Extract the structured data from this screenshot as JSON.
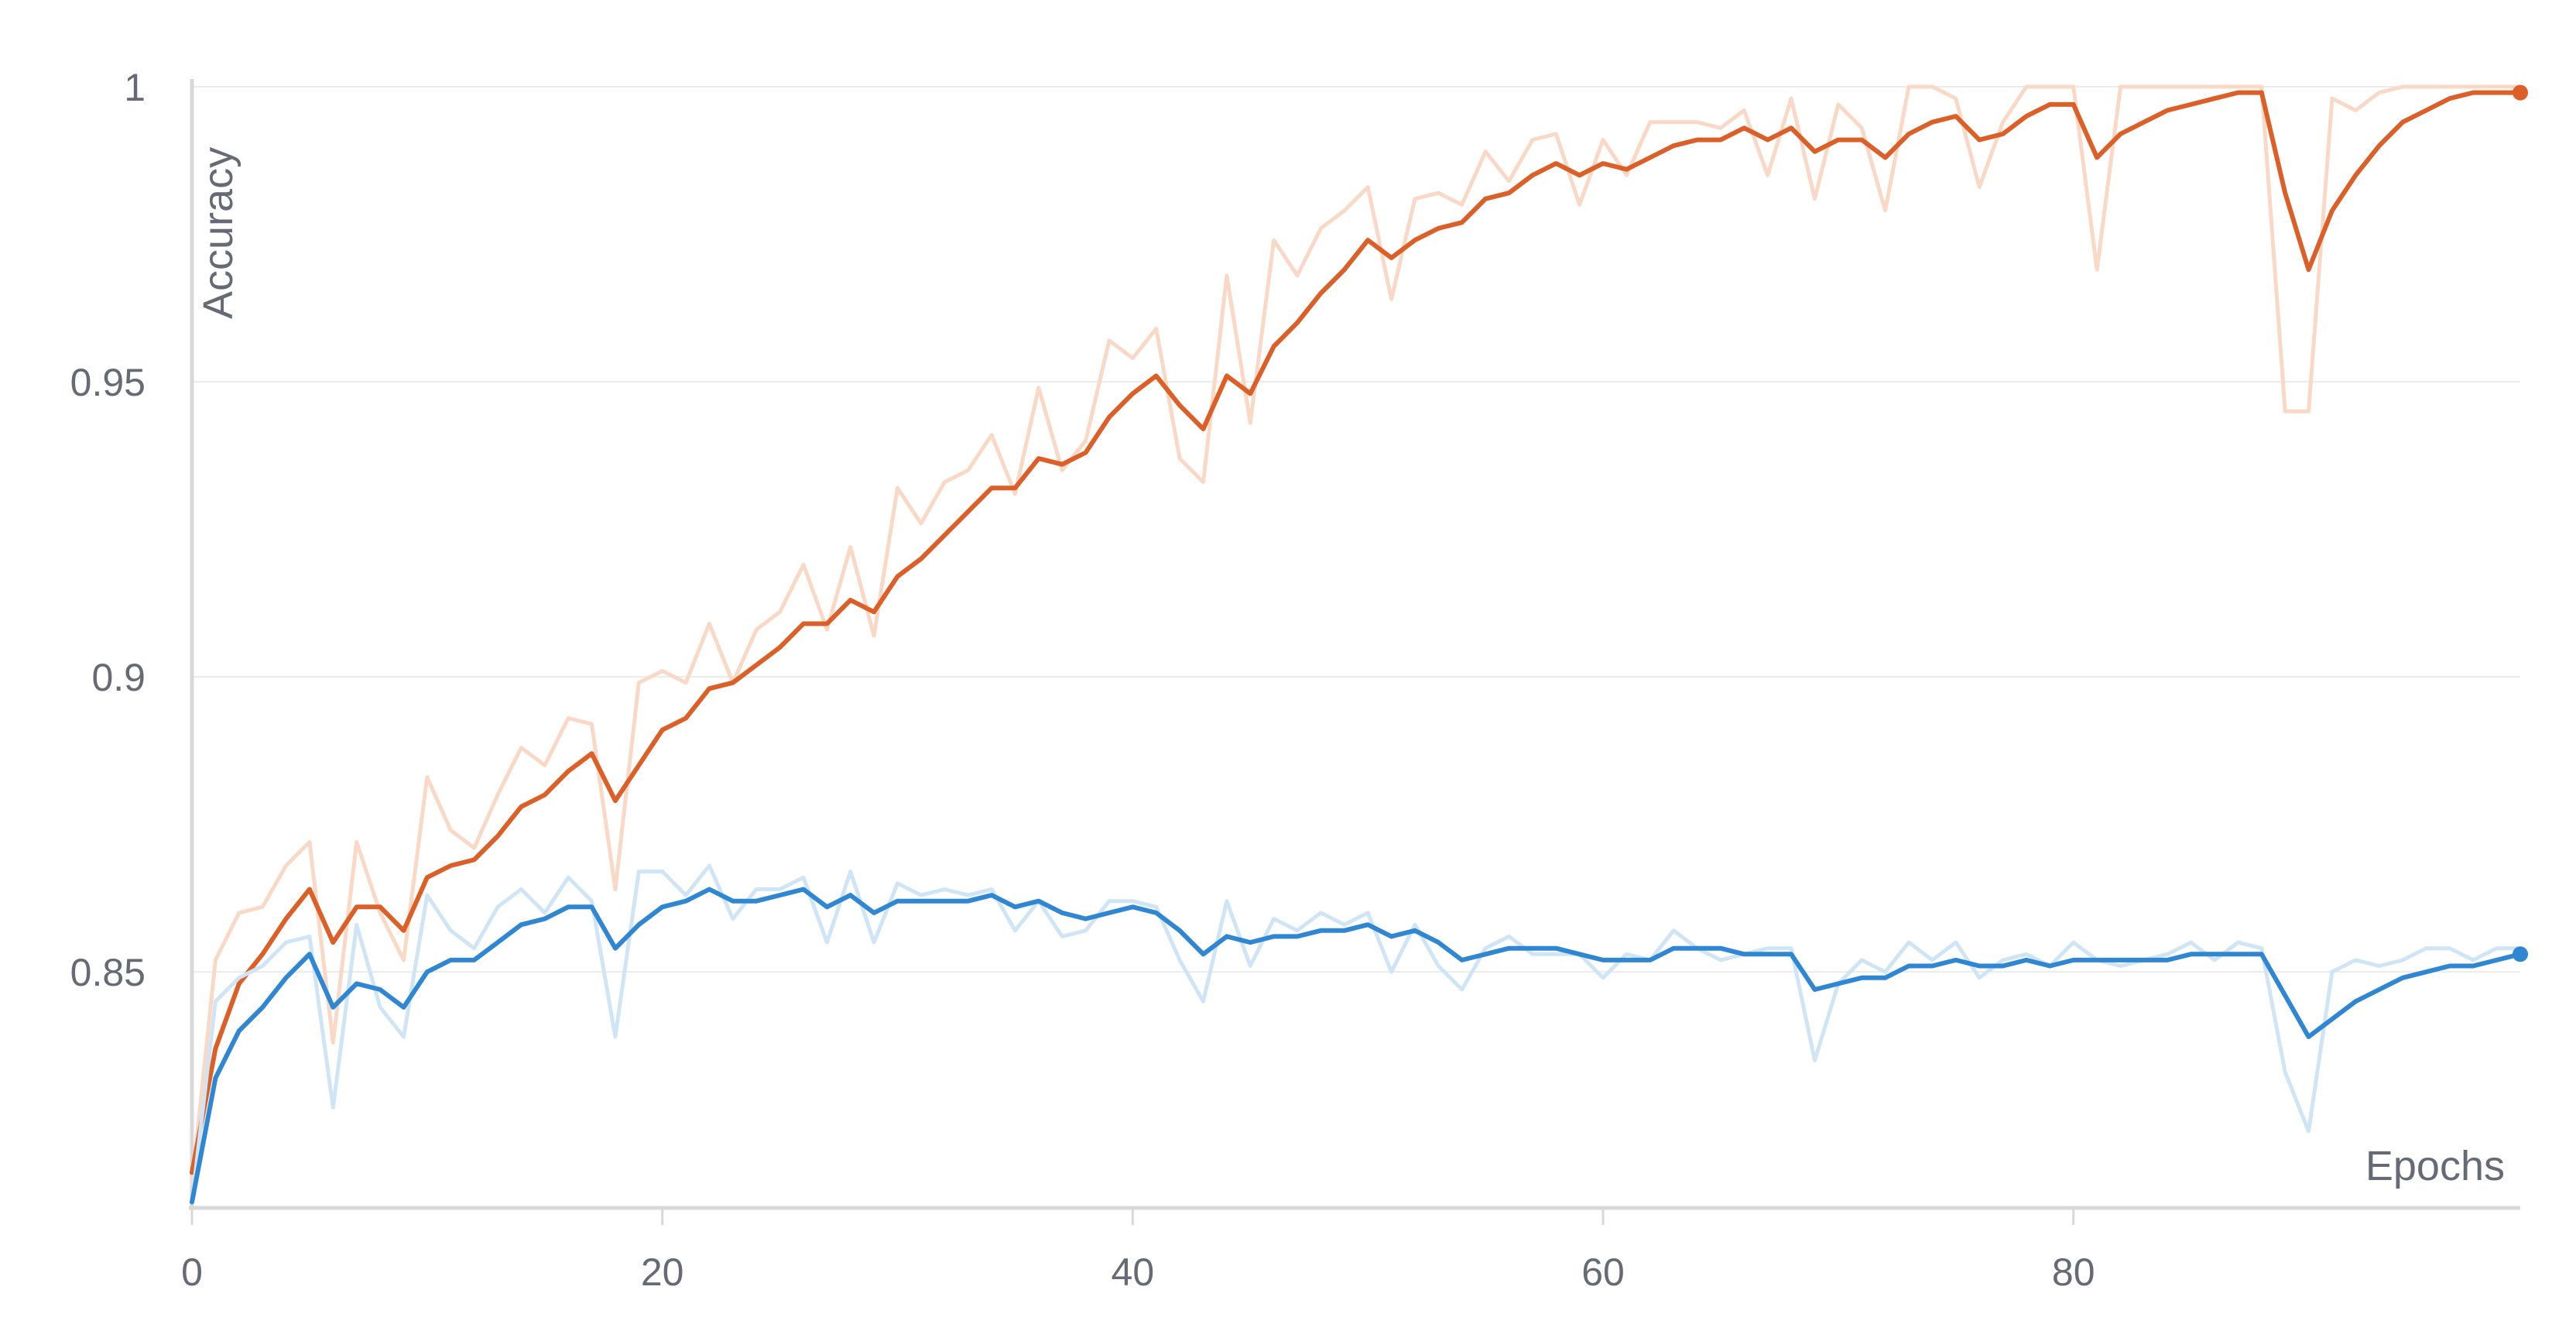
{
  "chart_data": {
    "type": "line",
    "xlabel": "Epochs",
    "ylabel": "Accuracy",
    "xlim": [
      0,
      99
    ],
    "ylim": [
      0.81,
      1.0
    ],
    "x_ticks": [
      0,
      20,
      40,
      60,
      80
    ],
    "x_tick_labels": [
      "0",
      "20",
      "40",
      "60",
      "80"
    ],
    "y_ticks": [
      0.85,
      0.9,
      0.95,
      1.0
    ],
    "y_tick_labels": [
      "0.85",
      "0.9",
      "0.95",
      "1"
    ],
    "grid": true,
    "smoothing": "exponential moving average shown as solid line over faint raw values",
    "colors": {
      "train_smoothed": "#dd5f28",
      "train_raw": "#f9d8c6",
      "val_smoothed": "#2f86d3",
      "val_raw": "#cfe5f6",
      "grid": "#ebebeb",
      "axis": "#d8d8d8",
      "text": "#666a75"
    },
    "series": [
      {
        "color": "#dd5f28",
        "raw_color": "#f9d8c6",
        "raw": [
          0.814,
          0.852,
          0.86,
          0.861,
          0.868,
          0.872,
          0.838,
          0.872,
          0.86,
          0.852,
          0.883,
          0.874,
          0.871,
          0.88,
          0.888,
          0.885,
          0.893,
          0.892,
          0.864,
          0.899,
          0.901,
          0.899,
          0.909,
          0.899,
          0.908,
          0.911,
          0.919,
          0.908,
          0.922,
          0.907,
          0.932,
          0.926,
          0.933,
          0.935,
          0.941,
          0.931,
          0.949,
          0.935,
          0.94,
          0.957,
          0.954,
          0.959,
          0.937,
          0.933,
          0.968,
          0.943,
          0.974,
          0.968,
          0.976,
          0.979,
          0.983,
          0.964,
          0.981,
          0.982,
          0.98,
          0.989,
          0.984,
          0.991,
          0.992,
          0.98,
          0.991,
          0.985,
          0.994,
          0.994,
          0.994,
          0.993,
          0.996,
          0.985,
          0.998,
          0.981,
          0.997,
          0.993,
          0.979,
          1.0,
          1.0,
          0.998,
          0.983,
          0.994,
          1.0,
          1.0,
          1.0,
          0.969,
          1.0,
          1.0,
          1.0,
          1.0,
          1.0,
          1.0,
          1.0,
          0.945,
          0.945,
          0.998,
          0.996,
          0.999,
          1.0,
          1.0,
          1.0,
          1.0,
          1.0,
          1.0
        ],
        "values": [
          0.816,
          0.837,
          0.848,
          0.853,
          0.859,
          0.864,
          0.855,
          0.861,
          0.861,
          0.857,
          0.866,
          0.868,
          0.869,
          0.873,
          0.878,
          0.88,
          0.884,
          0.887,
          0.879,
          0.885,
          0.891,
          0.893,
          0.898,
          0.899,
          0.902,
          0.905,
          0.909,
          0.909,
          0.913,
          0.911,
          0.917,
          0.92,
          0.924,
          0.928,
          0.932,
          0.932,
          0.937,
          0.936,
          0.938,
          0.944,
          0.948,
          0.951,
          0.946,
          0.942,
          0.951,
          0.948,
          0.956,
          0.96,
          0.965,
          0.969,
          0.974,
          0.971,
          0.974,
          0.976,
          0.977,
          0.981,
          0.982,
          0.985,
          0.987,
          0.985,
          0.987,
          0.986,
          0.988,
          0.99,
          0.991,
          0.991,
          0.993,
          0.991,
          0.993,
          0.989,
          0.991,
          0.991,
          0.988,
          0.992,
          0.994,
          0.995,
          0.991,
          0.992,
          0.995,
          0.997,
          0.997,
          0.988,
          0.992,
          0.994,
          0.996,
          0.997,
          0.998,
          0.999,
          0.999,
          0.982,
          0.969,
          0.979,
          0.985,
          0.99,
          0.994,
          0.996,
          0.998,
          0.999,
          0.999,
          0.999
        ]
      },
      {
        "color": "#2f86d3",
        "raw_color": "#cfe5f6",
        "raw": [
          0.811,
          0.845,
          0.849,
          0.851,
          0.855,
          0.856,
          0.827,
          0.858,
          0.844,
          0.839,
          0.863,
          0.857,
          0.854,
          0.861,
          0.864,
          0.86,
          0.866,
          0.862,
          0.839,
          0.867,
          0.867,
          0.863,
          0.868,
          0.859,
          0.864,
          0.864,
          0.866,
          0.855,
          0.867,
          0.855,
          0.865,
          0.863,
          0.864,
          0.863,
          0.864,
          0.857,
          0.862,
          0.856,
          0.857,
          0.862,
          0.862,
          0.861,
          0.852,
          0.845,
          0.862,
          0.851,
          0.859,
          0.857,
          0.86,
          0.858,
          0.86,
          0.85,
          0.858,
          0.851,
          0.847,
          0.854,
          0.856,
          0.853,
          0.853,
          0.853,
          0.849,
          0.853,
          0.852,
          0.857,
          0.854,
          0.852,
          0.853,
          0.854,
          0.854,
          0.835,
          0.848,
          0.852,
          0.85,
          0.855,
          0.852,
          0.855,
          0.849,
          0.852,
          0.853,
          0.851,
          0.855,
          0.852,
          0.851,
          0.852,
          0.853,
          0.855,
          0.852,
          0.855,
          0.854,
          0.833,
          0.823,
          0.85,
          0.852,
          0.851,
          0.852,
          0.854,
          0.854,
          0.852,
          0.854,
          0.854
        ],
        "values": [
          0.811,
          0.832,
          0.84,
          0.844,
          0.849,
          0.853,
          0.844,
          0.848,
          0.847,
          0.844,
          0.85,
          0.852,
          0.852,
          0.855,
          0.858,
          0.859,
          0.861,
          0.861,
          0.854,
          0.858,
          0.861,
          0.862,
          0.864,
          0.862,
          0.862,
          0.863,
          0.864,
          0.861,
          0.863,
          0.86,
          0.862,
          0.862,
          0.862,
          0.862,
          0.863,
          0.861,
          0.862,
          0.86,
          0.859,
          0.86,
          0.861,
          0.86,
          0.857,
          0.853,
          0.856,
          0.855,
          0.856,
          0.856,
          0.857,
          0.857,
          0.858,
          0.856,
          0.857,
          0.855,
          0.852,
          0.853,
          0.854,
          0.854,
          0.854,
          0.853,
          0.852,
          0.852,
          0.852,
          0.854,
          0.854,
          0.854,
          0.853,
          0.853,
          0.853,
          0.847,
          0.848,
          0.849,
          0.849,
          0.851,
          0.851,
          0.852,
          0.851,
          0.851,
          0.852,
          0.851,
          0.852,
          0.852,
          0.852,
          0.852,
          0.852,
          0.853,
          0.853,
          0.853,
          0.853,
          0.846,
          0.839,
          0.842,
          0.845,
          0.847,
          0.849,
          0.85,
          0.851,
          0.851,
          0.852,
          0.853
        ]
      }
    ]
  }
}
